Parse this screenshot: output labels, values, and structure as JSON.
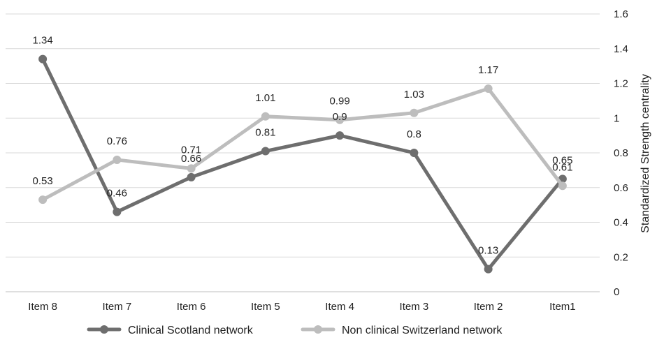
{
  "chart_data": {
    "type": "line",
    "categories": [
      "Item 8",
      "Item 7",
      "Item 6",
      "Item 5",
      "Item 4",
      "Item 3",
      "Item 2",
      "Item1"
    ],
    "series": [
      {
        "name": "Clinical Scotland network",
        "color": "#6e6e6e",
        "values": [
          1.34,
          0.46,
          0.66,
          0.81,
          0.9,
          0.8,
          0.13,
          0.65
        ],
        "labels": [
          "1.34",
          "0.46",
          "0.66",
          "0.81",
          "0.9",
          "0.8",
          "0.13",
          "0.65"
        ]
      },
      {
        "name": "Non clinical Switzerland network",
        "color": "#bdbdbd",
        "values": [
          0.53,
          0.76,
          0.71,
          1.01,
          0.99,
          1.03,
          1.17,
          0.61
        ],
        "labels": [
          "0.53",
          "0.76",
          "0.71",
          "1.01",
          "0.99",
          "1.03",
          "1.17",
          "0.61"
        ]
      }
    ],
    "ylabel": "Standardized Strength centrality",
    "ylim": [
      0,
      1.6
    ],
    "yticks": [
      0,
      0.2,
      0.4,
      0.6,
      0.8,
      1,
      1.2,
      1.4,
      1.6
    ],
    "ytick_labels": [
      "0",
      "0.2",
      "0.4",
      "0.6",
      "0.8",
      "1",
      "1.2",
      "1.4",
      "1.6"
    ],
    "y_axis_side": "right",
    "grid": true,
    "legend_position": "bottom"
  }
}
